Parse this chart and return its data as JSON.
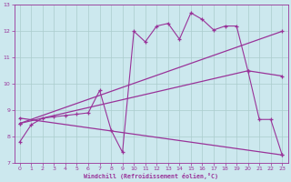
{
  "xlabel": "Windchill (Refroidissement éolien,°C)",
  "xlim": [
    -0.5,
    23.5
  ],
  "ylim": [
    7,
    13
  ],
  "xticks": [
    0,
    1,
    2,
    3,
    4,
    5,
    6,
    7,
    8,
    9,
    10,
    11,
    12,
    13,
    14,
    15,
    16,
    17,
    18,
    19,
    20,
    21,
    22,
    23
  ],
  "yticks": [
    7,
    8,
    9,
    10,
    11,
    12,
    13
  ],
  "bg_color": "#cce8ee",
  "line_color": "#993399",
  "grid_color": "#aacccc",
  "lines": [
    {
      "x": [
        0,
        1,
        2,
        3,
        4,
        5,
        6,
        7,
        8,
        9,
        10,
        11,
        12,
        13,
        14,
        15,
        16,
        17,
        18,
        19,
        20,
        21,
        22,
        23
      ],
      "y": [
        7.8,
        8.45,
        8.7,
        8.75,
        8.8,
        8.85,
        8.9,
        9.75,
        8.25,
        7.4,
        12.0,
        11.6,
        12.2,
        12.3,
        11.7,
        12.7,
        12.45,
        12.05,
        12.2,
        12.2,
        10.5,
        8.65,
        8.65,
        7.3
      ]
    },
    {
      "x": [
        0,
        23
      ],
      "y": [
        8.5,
        12.0
      ]
    },
    {
      "x": [
        0,
        20,
        23
      ],
      "y": [
        8.5,
        10.5,
        10.3
      ]
    },
    {
      "x": [
        0,
        23
      ],
      "y": [
        8.7,
        7.3
      ]
    }
  ]
}
